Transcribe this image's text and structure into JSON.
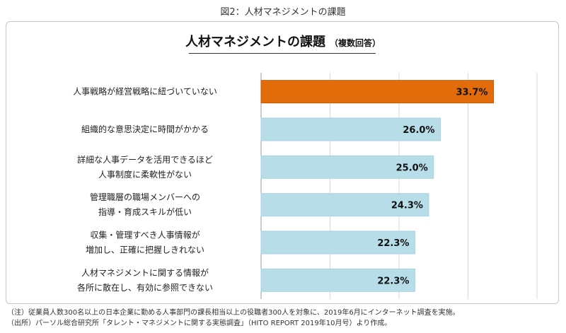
{
  "figure_caption": "図2：人材マネジメントの課題",
  "chart_data": {
    "type": "bar",
    "orientation": "horizontal",
    "title": "人材マネジメントの課題",
    "subtitle": "（複数回答）",
    "categories": [
      [
        "人事戦略が経営戦略に紐づいていない"
      ],
      [
        "組織的な意思決定に時間がかかる"
      ],
      [
        "詳細な人事データを活用できるほど",
        "人事制度に柔軟性がない"
      ],
      [
        "管理職層の職場メンバーへの",
        "指導・育成スキルが低い"
      ],
      [
        "収集・管理すべき人事情報が",
        "増加し、正確に把握しきれない"
      ],
      [
        "人材マネジメントに関する情報が",
        "各所に散在し、有効に参照できない"
      ]
    ],
    "values": [
      33.7,
      26.0,
      25.0,
      24.3,
      22.3,
      22.3
    ],
    "value_labels": [
      "33.7%",
      "26.0%",
      "25.0%",
      "24.3%",
      "22.3%",
      "22.3%"
    ],
    "xlim": [
      0,
      40
    ],
    "grid": true,
    "colors": {
      "highlight": "#e36c0a",
      "default": "#b7dde8",
      "grid": "#d9d9d9"
    }
  },
  "notes": [
    "（注）従業員人数300名以上の日本企業に勤める人事部門の課長相当以上の役職者300人を対象に、2019年6月にインターネット調査を実施。",
    "（出所）パーソル総合研究所「タレント・マネジメントに関する実態調査」（HITO REPORT 2019年10月号）より作成。"
  ]
}
